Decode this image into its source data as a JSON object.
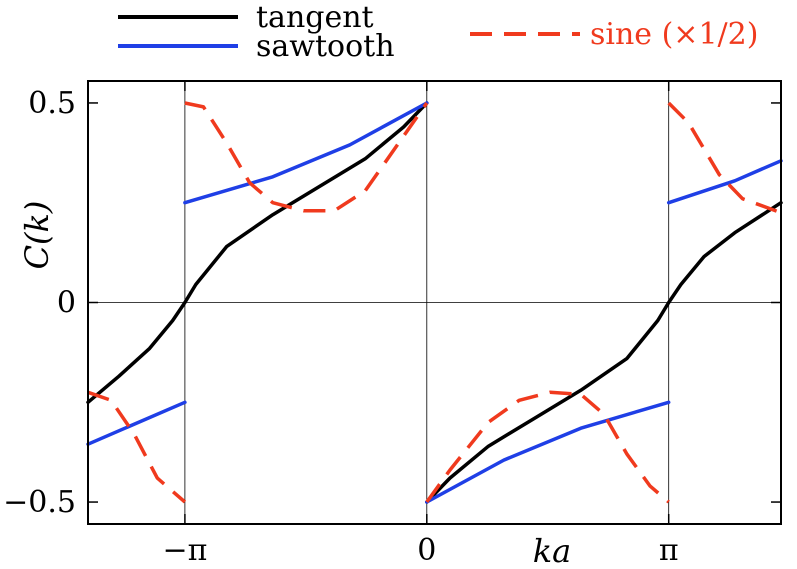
{
  "chart_data": {
    "type": "line",
    "xlabel": "ka",
    "ylabel": "C(k)",
    "xlim": [
      -4.4,
      4.6
    ],
    "ylim": [
      -0.555,
      0.555
    ],
    "x_ticks": [
      {
        "value": -3.14159,
        "label": "−π"
      },
      {
        "value": 0,
        "label": "0"
      },
      {
        "value": 3.14159,
        "label": "π"
      }
    ],
    "y_ticks": [
      {
        "value": 0.5,
        "label": "0.5"
      },
      {
        "value": 0,
        "label": "0"
      },
      {
        "value": -0.5,
        "label": "−0.5"
      }
    ],
    "grid": "lines at x = −π, 0, π and y = 0",
    "legend": {
      "placement": "top, outside plot"
    },
    "series": [
      {
        "name": "tangent",
        "color": "#000000",
        "style": "solid",
        "segments": [
          {
            "x": [
              -4.4,
              -4.0,
              -3.6,
              -3.3,
              -3.14159,
              -3.0,
              -2.6,
              -2.0,
              -1.4,
              -0.8,
              -0.3,
              0
            ],
            "y": [
              -0.25,
              -0.185,
              -0.115,
              -0.045,
              0,
              0.045,
              0.14,
              0.22,
              0.29,
              0.36,
              0.44,
              0.5
            ]
          },
          {
            "x": [
              0,
              0.3,
              0.8,
              1.4,
              2.0,
              2.6,
              3.0,
              3.14159,
              3.3,
              3.6,
              4.0,
              4.6
            ],
            "y": [
              -0.5,
              -0.44,
              -0.36,
              -0.29,
              -0.22,
              -0.14,
              -0.045,
              0,
              0.045,
              0.115,
              0.175,
              0.25
            ]
          }
        ]
      },
      {
        "name": "sawtooth",
        "color": "#1f3fe6",
        "style": "solid",
        "segments": [
          {
            "x": [
              -4.4,
              -3.14159
            ],
            "y": [
              -0.355,
              -0.25
            ]
          },
          {
            "x": [
              -3.14159,
              -2.0,
              -1.0,
              0
            ],
            "y": [
              0.25,
              0.315,
              0.395,
              0.5
            ]
          },
          {
            "x": [
              0,
              1.0,
              2.0,
              3.14159
            ],
            "y": [
              -0.5,
              -0.395,
              -0.315,
              -0.25
            ]
          },
          {
            "x": [
              3.14159,
              4.0,
              4.6
            ],
            "y": [
              0.25,
              0.305,
              0.355
            ]
          }
        ]
      },
      {
        "name": "sine (×1/2)",
        "color": "#f03a1e",
        "style": "dashed",
        "segments": [
          {
            "x": [
              -4.4,
              -4.1,
              -3.8,
              -3.5,
              -3.14159
            ],
            "y": [
              -0.225,
              -0.245,
              -0.33,
              -0.44,
              -0.5
            ]
          },
          {
            "x": [
              -3.14159,
              -2.9,
              -2.6,
              -2.3,
              -2.0,
              -1.6,
              -1.2,
              -0.8,
              -0.4,
              0
            ],
            "y": [
              0.5,
              0.49,
              0.4,
              0.3,
              0.25,
              0.23,
              0.23,
              0.28,
              0.39,
              0.5
            ]
          },
          {
            "x": [
              0,
              0.3,
              0.8,
              1.2,
              1.6,
              2.0,
              2.3,
              2.6,
              2.9,
              3.14159
            ],
            "y": [
              -0.5,
              -0.42,
              -0.3,
              -0.245,
              -0.225,
              -0.23,
              -0.28,
              -0.38,
              -0.46,
              -0.5
            ]
          },
          {
            "x": [
              3.14159,
              3.4,
              3.8,
              4.1,
              4.6
            ],
            "y": [
              0.5,
              0.45,
              0.32,
              0.26,
              0.225
            ]
          }
        ]
      }
    ]
  }
}
